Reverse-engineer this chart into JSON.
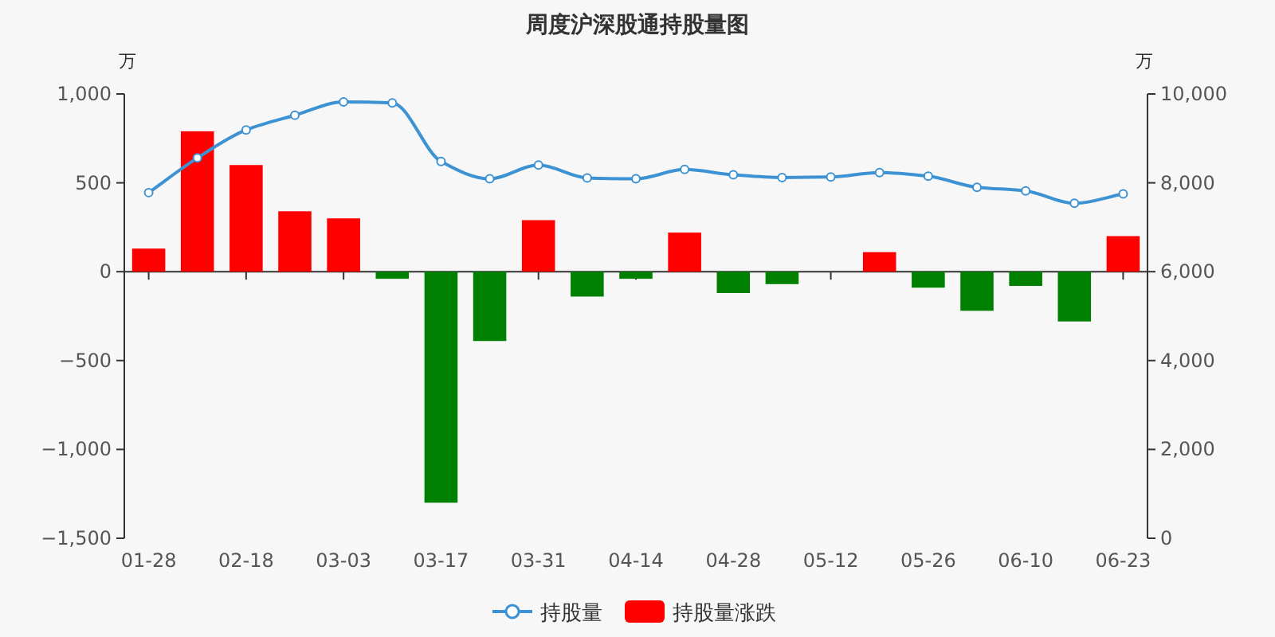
{
  "chart_data": {
    "type": "bar",
    "title": "周度沪深股通持股量图",
    "ylabel": "万",
    "y2label": "万",
    "categories": [
      "01-28",
      null,
      "02-18",
      null,
      "03-03",
      null,
      "03-17",
      null,
      "03-31",
      null,
      "04-14",
      null,
      "04-28",
      null,
      "05-12",
      null,
      "05-26",
      null,
      "06-10",
      null,
      "06-23"
    ],
    "series": [
      {
        "name": "持股量",
        "type": "line",
        "axis": "y2",
        "color": "#3c92d2",
        "marker": "circle",
        "values": [
          7780,
          8560,
          9190,
          9520,
          9820,
          9800,
          8480,
          8090,
          8400,
          8110,
          8090,
          8300,
          8180,
          8120,
          8130,
          8230,
          8150,
          7900,
          7820,
          7540,
          7750
        ]
      },
      {
        "name": "持股量涨跌",
        "color": "#ff0000",
        "values": [
          130,
          790,
          600,
          340,
          300,
          -40,
          -1300,
          -390,
          290,
          -140,
          -40,
          220,
          -120,
          -70,
          0,
          110,
          -90,
          -220,
          -80,
          -280,
          200
        ],
        "colors": [
          "#ff0000",
          "#ff0000",
          "#ff0000",
          "#ff0000",
          "#ff0000",
          "#008000",
          "#008000",
          "#008000",
          "#ff0000",
          "#008000",
          "#008000",
          "#ff0000",
          "#008000",
          "#008000",
          "#008000",
          "#ff0000",
          "#008000",
          "#008000",
          "#008000",
          "#008000",
          "#ff0000"
        ]
      }
    ],
    "ylim": [
      -1500,
      1000
    ],
    "yticks": [
      {
        "value": -1500,
        "label": "−1,500"
      },
      {
        "value": -1000,
        "label": "−1,000"
      },
      {
        "value": -500,
        "label": "−500"
      },
      0,
      500,
      {
        "value": 1000,
        "label": "1,000"
      }
    ],
    "y2lim": [
      0,
      10000
    ],
    "y2ticks": [
      0,
      {
        "value": 2000,
        "label": "2,000"
      },
      {
        "value": 4000,
        "label": "4,000"
      },
      {
        "value": 6000,
        "label": "6,000"
      },
      {
        "value": 8000,
        "label": "8,000"
      },
      {
        "value": 10000,
        "label": "10,000"
      }
    ],
    "legend": "bottom"
  }
}
